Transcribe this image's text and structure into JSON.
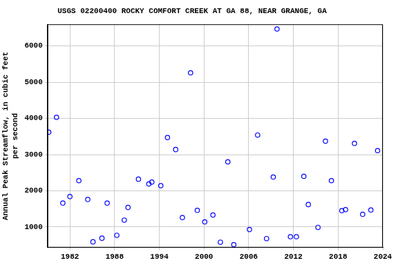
{
  "chart_data": {
    "type": "scatter",
    "title": "USGS 02200400 ROCKY COMFORT CREEK AT GA 88, NEAR GRANGE, GA",
    "ylabel": [
      "Annual Peak Streamflow, in cubic feet",
      "per second"
    ],
    "x": [
      1979.16,
      1980.2,
      1981.05,
      1982.0,
      1983.2,
      1984.4,
      1985.1,
      1986.3,
      1987.0,
      1988.3,
      1989.3,
      1989.8,
      1991.2,
      1992.6,
      1993.0,
      1994.2,
      1995.1,
      1996.2,
      1997.1,
      1998.2,
      1999.1,
      2000.1,
      2001.2,
      2002.2,
      2003.2,
      2004.0,
      2006.1,
      2007.2,
      2008.4,
      2009.3,
      2009.8,
      2011.6,
      2012.4,
      2013.4,
      2014.0,
      2015.3,
      2016.3,
      2017.1,
      2018.5,
      2019.0,
      2020.2,
      2021.3,
      2022.4,
      2023.3
    ],
    "values": [
      3620,
      4030,
      1660,
      1840,
      2280,
      1760,
      590,
      690,
      1660,
      770,
      1190,
      1540,
      2320,
      2190,
      2240,
      2140,
      3470,
      3140,
      1260,
      5260,
      1460,
      1140,
      1330,
      580,
      2800,
      510,
      930,
      3540,
      680,
      2380,
      6470,
      730,
      730,
      2400,
      1620,
      990,
      3370,
      2280,
      1450,
      1480,
      3310,
      1350,
      1470,
      3110
    ],
    "color": "#0000ff",
    "marker": "circle",
    "xlim": [
      1979,
      2024
    ],
    "xticks": [
      1982,
      1988,
      1994,
      2000,
      2006,
      2012,
      2018,
      2024
    ],
    "ylim": [
      430,
      6600
    ],
    "yticks": [
      1000,
      2000,
      3000,
      4000,
      5000,
      6000
    ],
    "grid": true
  }
}
